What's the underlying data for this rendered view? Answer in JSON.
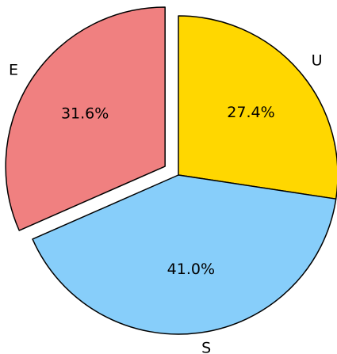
{
  "chart_data": {
    "type": "pie",
    "categories": [
      "U",
      "S",
      "E"
    ],
    "values": [
      27.4,
      41.0,
      31.6
    ],
    "value_labels": [
      "27.4%",
      "41.0%",
      "31.6%"
    ],
    "colors": [
      "#ffd700",
      "#87cefa",
      "#f08080"
    ],
    "explode": [
      0,
      0,
      0.1
    ],
    "start_angle": 90,
    "direction": "clockwise"
  }
}
